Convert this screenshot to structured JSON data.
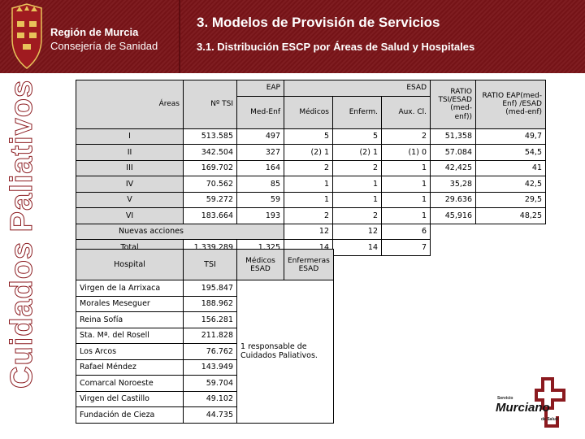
{
  "header": {
    "region": "Región de Murcia",
    "department": "Consejería de Sanidad",
    "title": "3. Modelos de Provisión de Servicios",
    "subtitle": "3.1. Distribución ESCP por Áreas de Salud y Hospitales"
  },
  "sidebar": {
    "vertical_title": "Cuidados Paliativos"
  },
  "colors": {
    "header_bg": "#7a1418",
    "cell_gray": "#d9d9d9",
    "logo_red": "#8b1a1f"
  },
  "main_table": {
    "headers": {
      "areas": "Áreas",
      "tsi": "Nº TSI",
      "eap": "EAP",
      "esad": "ESAD",
      "med_enf": "Med-Enf",
      "medicos": "Médicos",
      "enferm": "Enferm.",
      "aux_cl": "Aux. Cl.",
      "ratio_tsi_esad": "RATIO TSI/ESAD (med-enf))",
      "ratio_eap_esad": "RATIO EAP(med-Enf) /ESAD (med-enf)"
    },
    "rows": [
      {
        "area": "I",
        "tsi": "513.585",
        "med_enf": "497",
        "medicos": "5",
        "enferm": "5",
        "aux": "2",
        "ratio1": "51,358",
        "ratio2": "49,7"
      },
      {
        "area": "II",
        "tsi": "342.504",
        "med_enf": "327",
        "medicos": "(2) 1",
        "enferm": "(2) 1",
        "aux": "(1) 0",
        "ratio1": "57.084",
        "ratio2": "54,5"
      },
      {
        "area": "III",
        "tsi": "169.702",
        "med_enf": "164",
        "medicos": "2",
        "enferm": "2",
        "aux": "1",
        "ratio1": "42,425",
        "ratio2": "41"
      },
      {
        "area": "IV",
        "tsi": "70.562",
        "med_enf": "85",
        "medicos": "1",
        "enferm": "1",
        "aux": "1",
        "ratio1": "35,28",
        "ratio2": "42,5"
      },
      {
        "area": "V",
        "tsi": "59.272",
        "med_enf": "59",
        "medicos": "1",
        "enferm": "1",
        "aux": "1",
        "ratio1": "29.636",
        "ratio2": "29,5"
      },
      {
        "area": "VI",
        "tsi": "183.664",
        "med_enf": "193",
        "medicos": "2",
        "enferm": "2",
        "aux": "1",
        "ratio1": "45,916",
        "ratio2": "48,25"
      }
    ],
    "nuevas": {
      "label": "Nuevas acciones",
      "medicos": "12",
      "enferm": "12",
      "aux": "6"
    },
    "total": {
      "label": "Total",
      "tsi": "1.339.289",
      "med_enf": "1.325",
      "medicos": "14",
      "enferm": "14",
      "aux": "7"
    }
  },
  "hospital_table": {
    "headers": {
      "hospital": "Hospital",
      "tsi": "TSI",
      "medicos_esad": "Médicos ESAD",
      "enfermeras_esad": "Enfermeras ESAD"
    },
    "rows": [
      {
        "name": "Virgen de la Arrixaca",
        "tsi": "195.847"
      },
      {
        "name": "Morales Meseguer",
        "tsi": "188.962"
      },
      {
        "name": "Reina Sofía",
        "tsi": "156.281"
      },
      {
        "name": "Sta. Mª. del Rosell",
        "tsi": "211.828"
      },
      {
        "name": "Los Arcos",
        "tsi": "76.762"
      },
      {
        "name": "Rafael Méndez",
        "tsi": "143.949"
      },
      {
        "name": "Comarcal Noroeste",
        "tsi": "59.704"
      },
      {
        "name": "Virgen del Castillo",
        "tsi": "49.102"
      },
      {
        "name": "Fundación de Cieza",
        "tsi": "44.735"
      }
    ],
    "note": "1 responsable de Cuidados Paliativos."
  },
  "logo": {
    "top": "Servicio",
    "main": "Murciano",
    "bottom": "de Salud"
  }
}
